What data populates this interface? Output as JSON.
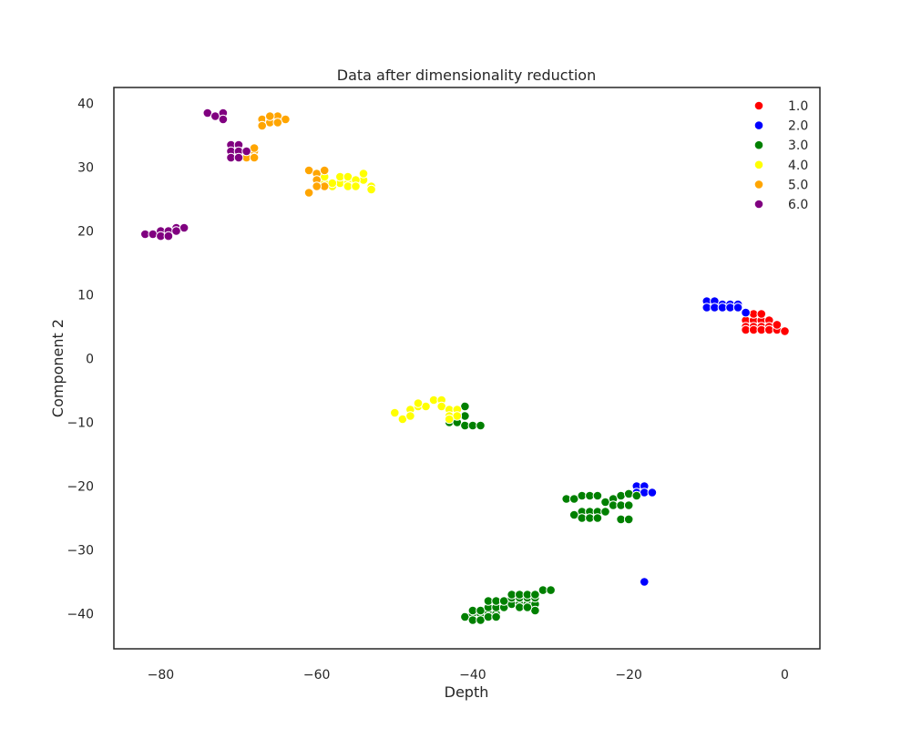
{
  "chart_data": {
    "type": "scatter",
    "title": "Data after dimensionality reduction",
    "xlabel": "Depth",
    "ylabel": "Component 2",
    "xlim": [
      -86,
      4.5
    ],
    "ylim": [
      -45.5,
      42.5
    ],
    "xticks": [
      -80,
      -60,
      -40,
      -20,
      0
    ],
    "yticks": [
      -40,
      -30,
      -20,
      -10,
      0,
      10,
      20,
      30,
      40
    ],
    "xtick_labels": [
      "−80",
      "−60",
      "−40",
      "−20",
      "0"
    ],
    "ytick_labels": [
      "−40",
      "−30",
      "−20",
      "−10",
      "0",
      "10",
      "20",
      "30",
      "40"
    ],
    "grid": false,
    "legend_position": "top-right",
    "series": [
      {
        "name": "1.0",
        "color": "#ff0000",
        "points": [
          [
            -5,
            6
          ],
          [
            -4,
            6
          ],
          [
            -3,
            6
          ],
          [
            -2,
            6
          ],
          [
            -5,
            5
          ],
          [
            -4,
            5
          ],
          [
            -3,
            5
          ],
          [
            -2,
            5
          ],
          [
            -1,
            5
          ],
          [
            -5,
            4.5
          ],
          [
            -4,
            4.5
          ],
          [
            -3,
            4.5
          ],
          [
            -2,
            4.5
          ],
          [
            -1,
            4.5
          ],
          [
            0,
            4.3
          ],
          [
            -4,
            7
          ],
          [
            -3,
            7
          ],
          [
            -1,
            5.3
          ]
        ]
      },
      {
        "name": "2.0",
        "color": "#0000ff",
        "points": [
          [
            -10,
            9
          ],
          [
            -9,
            9
          ],
          [
            -8,
            8.5
          ],
          [
            -7,
            8.5
          ],
          [
            -6,
            8.5
          ],
          [
            -10,
            8
          ],
          [
            -9,
            8
          ],
          [
            -8,
            8
          ],
          [
            -7,
            8
          ],
          [
            -6,
            8
          ],
          [
            -5,
            7.2
          ],
          [
            -19,
            -20
          ],
          [
            -18,
            -20
          ],
          [
            -19,
            -21
          ],
          [
            -18,
            -21
          ],
          [
            -17,
            -21
          ],
          [
            -18,
            -35
          ]
        ]
      },
      {
        "name": "3.0",
        "color": "#008000",
        "points": [
          [
            -41,
            -7.5
          ],
          [
            -41,
            -9
          ],
          [
            -42,
            -9
          ],
          [
            -43,
            -10
          ],
          [
            -42,
            -10
          ],
          [
            -41,
            -10.5
          ],
          [
            -40,
            -10.5
          ],
          [
            -39,
            -10.5
          ],
          [
            -28,
            -22
          ],
          [
            -27,
            -22
          ],
          [
            -26,
            -21.5
          ],
          [
            -25,
            -21.5
          ],
          [
            -24,
            -21.5
          ],
          [
            -23,
            -22.5
          ],
          [
            -22,
            -22
          ],
          [
            -21,
            -21.5
          ],
          [
            -20,
            -21.2
          ],
          [
            -19,
            -21.5
          ],
          [
            -26,
            -24
          ],
          [
            -25,
            -24
          ],
          [
            -24,
            -24
          ],
          [
            -23,
            -24
          ],
          [
            -22,
            -23
          ],
          [
            -21,
            -23
          ],
          [
            -20,
            -23
          ],
          [
            -27,
            -24.5
          ],
          [
            -26,
            -25
          ],
          [
            -25,
            -25
          ],
          [
            -24,
            -25
          ],
          [
            -21,
            -25.2
          ],
          [
            -20,
            -25.2
          ],
          [
            -41,
            -40.5
          ],
          [
            -40,
            -40
          ],
          [
            -39,
            -40
          ],
          [
            -38,
            -40
          ],
          [
            -37,
            -40
          ],
          [
            -40,
            -41
          ],
          [
            -39,
            -41
          ],
          [
            -38,
            -40.5
          ],
          [
            -37,
            -40.5
          ],
          [
            -40,
            -39.5
          ],
          [
            -39,
            -39.5
          ],
          [
            -38,
            -39
          ],
          [
            -37,
            -39
          ],
          [
            -36,
            -39
          ],
          [
            -35,
            -38.5
          ],
          [
            -34,
            -38.5
          ],
          [
            -33,
            -38.5
          ],
          [
            -32,
            -38.5
          ],
          [
            -38,
            -38
          ],
          [
            -37,
            -38
          ],
          [
            -36,
            -38
          ],
          [
            -35,
            -37.5
          ],
          [
            -34,
            -37.5
          ],
          [
            -33,
            -37.5
          ],
          [
            -32,
            -37.5
          ],
          [
            -35,
            -37
          ],
          [
            -34,
            -37
          ],
          [
            -33,
            -37
          ],
          [
            -32,
            -37
          ],
          [
            -31,
            -36.3
          ],
          [
            -30,
            -36.3
          ],
          [
            -32,
            -39.5
          ],
          [
            -34,
            -39
          ],
          [
            -33,
            -39
          ]
        ]
      },
      {
        "name": "4.0",
        "color": "#ffff00",
        "points": [
          [
            -60,
            28
          ],
          [
            -59,
            27.5
          ],
          [
            -58,
            27
          ],
          [
            -57,
            27.5
          ],
          [
            -56,
            27.5
          ],
          [
            -55,
            27.5
          ],
          [
            -54,
            28
          ],
          [
            -53,
            27
          ],
          [
            -59,
            28.5
          ],
          [
            -57,
            28.5
          ],
          [
            -56,
            28.5
          ],
          [
            -55,
            28
          ],
          [
            -54,
            29
          ],
          [
            -58,
            27.5
          ],
          [
            -56,
            27
          ],
          [
            -55,
            27
          ],
          [
            -53,
            26.5
          ],
          [
            -50,
            -8.5
          ],
          [
            -49,
            -9.5
          ],
          [
            -48,
            -8
          ],
          [
            -47,
            -7.5
          ],
          [
            -46,
            -7.5
          ],
          [
            -45,
            -6.5
          ],
          [
            -44,
            -6.5
          ],
          [
            -44,
            -7.5
          ],
          [
            -43,
            -8
          ],
          [
            -42,
            -8
          ],
          [
            -43,
            -9
          ],
          [
            -42,
            -9
          ],
          [
            -43,
            -9.5
          ],
          [
            -48,
            -9
          ],
          [
            -47,
            -7
          ]
        ]
      },
      {
        "name": "5.0",
        "color": "#ffa500",
        "points": [
          [
            -67,
            37.5
          ],
          [
            -66,
            37.5
          ],
          [
            -65,
            38
          ],
          [
            -64,
            37.5
          ],
          [
            -66,
            37
          ],
          [
            -65,
            37
          ],
          [
            -67,
            36.5
          ],
          [
            -66,
            38
          ],
          [
            -69,
            32.5
          ],
          [
            -68,
            32.5
          ],
          [
            -69,
            31.5
          ],
          [
            -68,
            31.5
          ],
          [
            -68,
            33
          ],
          [
            -61,
            29.5
          ],
          [
            -60,
            29
          ],
          [
            -59,
            29.5
          ],
          [
            -60,
            28
          ],
          [
            -59,
            27
          ],
          [
            -60,
            27
          ],
          [
            -61,
            26
          ]
        ]
      },
      {
        "name": "6.0",
        "color": "#800080",
        "points": [
          [
            -74,
            38.5
          ],
          [
            -73,
            38
          ],
          [
            -72,
            38.5
          ],
          [
            -72,
            37.5
          ],
          [
            -71,
            33.5
          ],
          [
            -70,
            33.5
          ],
          [
            -71,
            32.5
          ],
          [
            -70,
            32.5
          ],
          [
            -69,
            32.5
          ],
          [
            -71,
            31.5
          ],
          [
            -70,
            31.5
          ],
          [
            -82,
            19.5
          ],
          [
            -81,
            19.5
          ],
          [
            -80,
            20
          ],
          [
            -79,
            20
          ],
          [
            -78,
            20.5
          ],
          [
            -77,
            20.5
          ],
          [
            -80,
            19.2
          ],
          [
            -79,
            19.2
          ],
          [
            -78,
            20
          ]
        ]
      }
    ]
  }
}
